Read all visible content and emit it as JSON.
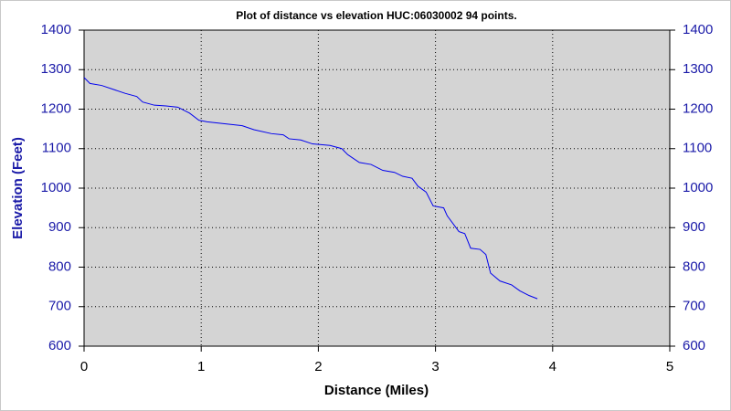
{
  "chart_data": {
    "type": "line",
    "title": "Plot of distance vs elevation  HUC:06030002 94 points.",
    "x_label": "Distance (Miles)",
    "y_label": "Elevation (Feet)",
    "x": [
      0,
      0.05,
      0.15,
      0.25,
      0.35,
      0.45,
      0.5,
      0.6,
      0.7,
      0.8,
      0.9,
      0.98,
      1.05,
      1.2,
      1.35,
      1.45,
      1.6,
      1.7,
      1.75,
      1.85,
      1.95,
      2.1,
      2.2,
      2.25,
      2.35,
      2.45,
      2.55,
      2.65,
      2.72,
      2.8,
      2.85,
      2.92,
      2.98,
      3.07,
      3.1,
      3.2,
      3.25,
      3.3,
      3.38,
      3.43,
      3.47,
      3.55,
      3.65,
      3.72,
      3.8,
      3.87
    ],
    "values": [
      1280,
      1265,
      1260,
      1250,
      1240,
      1232,
      1218,
      1210,
      1208,
      1205,
      1190,
      1172,
      1168,
      1163,
      1158,
      1148,
      1138,
      1135,
      1125,
      1122,
      1112,
      1108,
      1100,
      1085,
      1065,
      1060,
      1045,
      1040,
      1030,
      1025,
      1005,
      990,
      955,
      950,
      930,
      890,
      885,
      848,
      845,
      832,
      785,
      765,
      755,
      740,
      728,
      720
    ],
    "color": "#0000ee",
    "xlim": [
      0,
      5
    ],
    "xticks": [
      0,
      1,
      2,
      3,
      4,
      5
    ],
    "ylim": [
      600,
      1400
    ],
    "yticks": [
      600,
      700,
      800,
      900,
      1000,
      1100,
      1200,
      1300,
      1400
    ],
    "y2lim": [
      600,
      1400
    ],
    "y2ticks": [
      600,
      700,
      800,
      900,
      1000,
      1100,
      1200,
      1300,
      1400
    ],
    "grid": true
  }
}
